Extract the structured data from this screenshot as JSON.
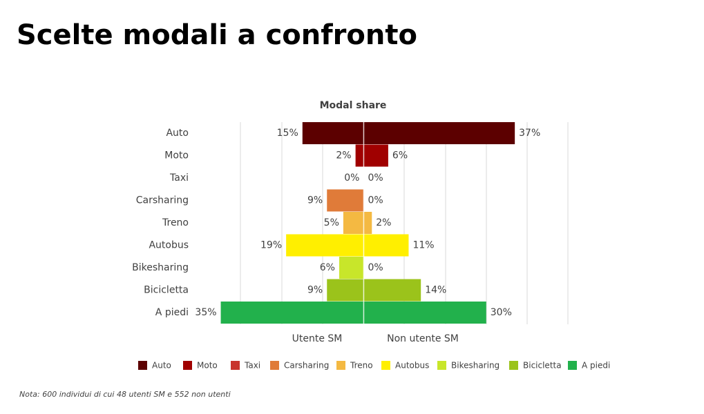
{
  "title": "Scelte modali a confronto",
  "note": "Nota: 600 individui di cui 48 utenti SM e 552 non utenti",
  "chart_data": {
    "type": "butterfly",
    "title": "Modal share",
    "categories": [
      "Auto",
      "Moto",
      "Taxi",
      "Carsharing",
      "Treno",
      "Autobus",
      "Bikesharing",
      "Bicicletta",
      "A piedi"
    ],
    "colors": [
      "#5c0000",
      "#a00000",
      "#c8342c",
      "#e07b39",
      "#f4b942",
      "#ffef00",
      "#c8e62a",
      "#9bc31b",
      "#22b14c"
    ],
    "series": [
      {
        "name": "Utente SM",
        "values": [
          15,
          2,
          0,
          9,
          5,
          19,
          6,
          9,
          35
        ],
        "value_labels": [
          "15%",
          "2%",
          "0%",
          "9%",
          "5%",
          "19%",
          "6%",
          "9%",
          "35%"
        ]
      },
      {
        "name": "Non utente SM",
        "values": [
          37,
          6,
          0,
          0,
          2,
          11,
          0,
          14,
          30
        ],
        "value_labels": [
          "37%",
          "6%",
          "0%",
          "0%",
          "2%",
          "11%",
          "0%",
          "14%",
          "30%"
        ]
      }
    ],
    "xlim": [
      -40,
      50
    ]
  }
}
